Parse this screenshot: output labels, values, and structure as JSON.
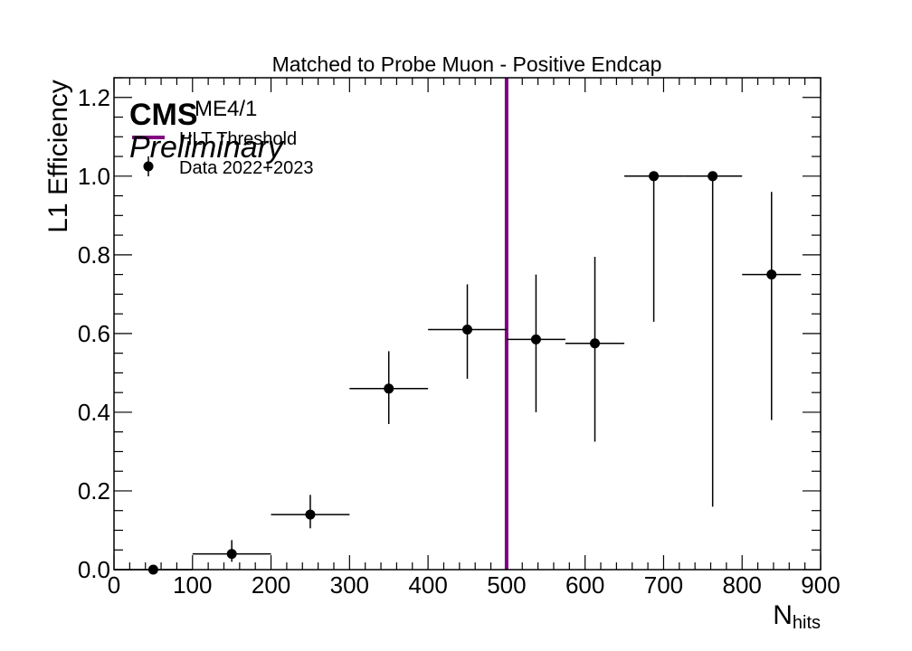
{
  "chart_data": {
    "type": "scatter",
    "title": "Matched to Probe Muon - Positive Endcap",
    "xlabel": "N",
    "xlabel_sub": "hits",
    "ylabel": "L1 Efficiency",
    "xlim": [
      0,
      900
    ],
    "ylim": [
      0,
      1.25
    ],
    "x_ticks": [
      0,
      100,
      200,
      300,
      400,
      500,
      600,
      700,
      800,
      900
    ],
    "y_ticks": [
      0.0,
      0.2,
      0.4,
      0.6,
      0.8,
      1.0,
      1.2
    ],
    "x_tick_labels": [
      "0",
      "100",
      "200",
      "300",
      "400",
      "500",
      "600",
      "700",
      "800",
      "900"
    ],
    "y_tick_labels": [
      "0.0",
      "0.2",
      "0.4",
      "0.6",
      "0.8",
      "1.0",
      "1.2"
    ],
    "grid": false,
    "cms_label": "CMS",
    "preliminary_label": "Preliminary",
    "region_label": "ME4/1",
    "threshold": {
      "name": "HLT Threshold",
      "x": 500,
      "color": "#800080"
    },
    "series": [
      {
        "name": "Data 2022+2023",
        "color": "#000000",
        "points": [
          {
            "x": 50,
            "xlo": 0,
            "xhi": 100,
            "y": 0.0,
            "ylo": 0.0,
            "yhi": 0.0
          },
          {
            "x": 150,
            "xlo": 100,
            "xhi": 200,
            "y": 0.04,
            "ylo": 0.02,
            "yhi": 0.075
          },
          {
            "x": 250,
            "xlo": 200,
            "xhi": 300,
            "y": 0.14,
            "ylo": 0.105,
            "yhi": 0.19
          },
          {
            "x": 350,
            "xlo": 300,
            "xhi": 400,
            "y": 0.46,
            "ylo": 0.37,
            "yhi": 0.555
          },
          {
            "x": 450,
            "xlo": 400,
            "xhi": 500,
            "y": 0.61,
            "ylo": 0.485,
            "yhi": 0.725
          },
          {
            "x": 537.5,
            "xlo": 500,
            "xhi": 575,
            "y": 0.585,
            "ylo": 0.4,
            "yhi": 0.75
          },
          {
            "x": 612.5,
            "xlo": 575,
            "xhi": 650,
            "y": 0.575,
            "ylo": 0.325,
            "yhi": 0.795
          },
          {
            "x": 687.5,
            "xlo": 650,
            "xhi": 725,
            "y": 1.0,
            "ylo": 0.63,
            "yhi": 1.0
          },
          {
            "x": 762.5,
            "xlo": 725,
            "xhi": 800,
            "y": 1.0,
            "ylo": 0.16,
            "yhi": 1.0
          },
          {
            "x": 837.5,
            "xlo": 800,
            "xhi": 875,
            "y": 0.75,
            "ylo": 0.38,
            "yhi": 0.96
          }
        ]
      }
    ]
  }
}
